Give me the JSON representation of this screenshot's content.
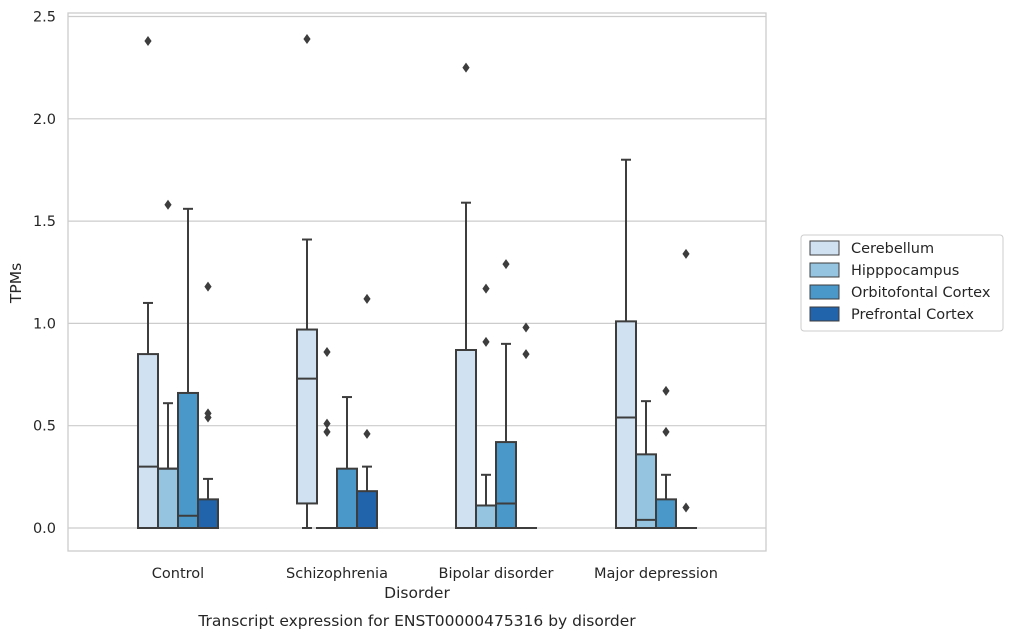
{
  "caption": "Transcript expression for ENST00000475316 by disorder",
  "chart_data": {
    "type": "box",
    "xlabel": "Disorder",
    "ylabel": "TPMs",
    "ylim": [
      -0.12,
      2.52
    ],
    "yticks": [
      0.0,
      0.5,
      1.0,
      1.5,
      2.0,
      2.5
    ],
    "ytick_labels": [
      "0.0",
      "0.5",
      "1.0",
      "1.5",
      "2.0",
      "2.5"
    ],
    "grid": "horizontal",
    "legend_position": "right",
    "categories": [
      "Control",
      "Schizophrenia",
      "Bipolar disorder",
      "Major depression"
    ],
    "series": [
      {
        "name": "Cerebellum",
        "color": "#d0e1f2",
        "boxes": [
          {
            "whislo": 0.0,
            "q1": 0.0,
            "med": 0.3,
            "q3": 0.85,
            "whishi": 1.1,
            "fliers": [
              2.38
            ]
          },
          {
            "whislo": 0.0,
            "q1": 0.12,
            "med": 0.73,
            "q3": 0.97,
            "whishi": 1.41,
            "fliers": [
              2.39
            ]
          },
          {
            "whislo": 0.0,
            "q1": 0.0,
            "med": 0.0,
            "q3": 0.87,
            "whishi": 1.59,
            "fliers": [
              2.25
            ]
          },
          {
            "whislo": 0.0,
            "q1": 0.0,
            "med": 0.54,
            "q3": 1.01,
            "whishi": 1.8,
            "fliers": []
          }
        ]
      },
      {
        "name": "Hipppocampus",
        "color": "#94c4df",
        "boxes": [
          {
            "whislo": 0.0,
            "q1": 0.0,
            "med": 0.29,
            "q3": 0.29,
            "whishi": 0.61,
            "fliers": [
              1.58
            ]
          },
          {
            "whislo": 0.0,
            "q1": 0.0,
            "med": 0.0,
            "q3": 0.0,
            "whishi": 0.0,
            "fliers": [
              0.86,
              0.51,
              0.47
            ]
          },
          {
            "whislo": 0.0,
            "q1": 0.0,
            "med": 0.0,
            "q3": 0.11,
            "whishi": 0.26,
            "fliers": [
              1.17,
              0.91
            ]
          },
          {
            "whislo": 0.0,
            "q1": 0.0,
            "med": 0.04,
            "q3": 0.36,
            "whishi": 0.62,
            "fliers": []
          }
        ]
      },
      {
        "name": "Orbitofontal Cortex",
        "color": "#4a98c9",
        "boxes": [
          {
            "whislo": 0.0,
            "q1": 0.0,
            "med": 0.06,
            "q3": 0.66,
            "whishi": 1.56,
            "fliers": []
          },
          {
            "whislo": 0.0,
            "q1": 0.0,
            "med": 0.0,
            "q3": 0.29,
            "whishi": 0.64,
            "fliers": []
          },
          {
            "whislo": 0.0,
            "q1": 0.0,
            "med": 0.12,
            "q3": 0.42,
            "whishi": 0.9,
            "fliers": [
              1.29
            ]
          },
          {
            "whislo": 0.0,
            "q1": 0.0,
            "med": 0.0,
            "q3": 0.14,
            "whishi": 0.26,
            "fliers": [
              0.67,
              0.47
            ]
          }
        ]
      },
      {
        "name": "Prefrontal Cortex",
        "color": "#2164ab",
        "boxes": [
          {
            "whislo": 0.0,
            "q1": 0.0,
            "med": 0.0,
            "q3": 0.14,
            "whishi": 0.24,
            "fliers": [
              1.18,
              0.56,
              0.54
            ]
          },
          {
            "whislo": 0.0,
            "q1": 0.0,
            "med": 0.0,
            "q3": 0.18,
            "whishi": 0.3,
            "fliers": [
              1.12,
              0.46
            ]
          },
          {
            "whislo": 0.0,
            "q1": 0.0,
            "med": 0.0,
            "q3": 0.0,
            "whishi": 0.0,
            "fliers": [
              0.98,
              0.85
            ]
          },
          {
            "whislo": 0.0,
            "q1": 0.0,
            "med": 0.0,
            "q3": 0.0,
            "whishi": 0.0,
            "fliers": [
              1.34,
              0.1
            ]
          }
        ]
      }
    ]
  }
}
